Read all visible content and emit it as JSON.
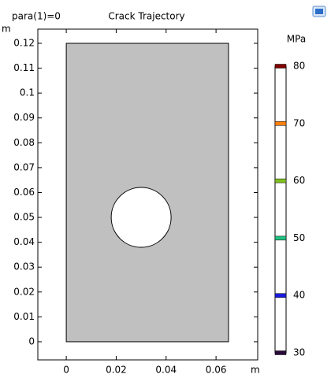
{
  "chart_data": {
    "type": "geometry",
    "title": "Crack Trajectory",
    "subtitle": "para(1)=0",
    "xlabel": "m",
    "ylabel": "m",
    "xlim": [
      -0.0114,
      0.0767
    ],
    "ylim": [
      -0.0073,
      0.1257
    ],
    "xticks": [
      0,
      0.02,
      0.04,
      0.06
    ],
    "yticks": [
      0,
      0.01,
      0.02,
      0.03,
      0.04,
      0.05,
      0.06,
      0.07,
      0.08,
      0.09,
      0.1,
      0.11,
      0.12
    ],
    "rectangle": {
      "x": [
        0,
        0.065
      ],
      "y": [
        0,
        0.12
      ],
      "color": "#c0c0c0"
    },
    "circle": {
      "center": [
        0.03,
        0.05
      ],
      "radius": 0.012,
      "color": "#ffffff"
    },
    "colorbar": {
      "label": "MPa",
      "range": [
        30,
        80
      ],
      "ticks": [
        30,
        40,
        50,
        60,
        70,
        80
      ],
      "colors": [
        "#2a0a3a",
        "#1a1adf",
        "#20c080",
        "#80c020",
        "#ff7f0e",
        "#800000"
      ]
    }
  }
}
